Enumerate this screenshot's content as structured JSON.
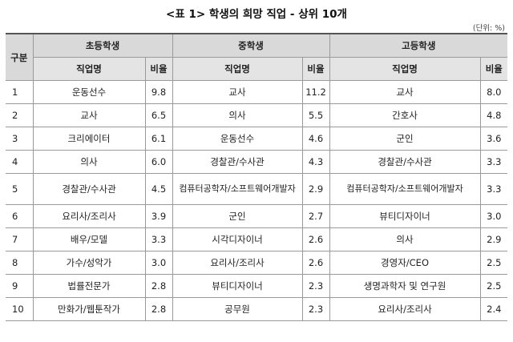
{
  "title": "<표 1> 학생의 희망 직업 - 상위 10개",
  "unit": "(단위: %)",
  "header": {
    "gubun": "구분",
    "groups": [
      "초등학생",
      "중학생",
      "고등학생"
    ],
    "job_label": "직업명",
    "ratio_label": "비율"
  },
  "rows": [
    {
      "rank": "1",
      "e_job": "운동선수",
      "e_val": "9.8",
      "m_job": "교사",
      "m_val": "11.2",
      "h_job": "교사",
      "h_val": "8.0"
    },
    {
      "rank": "2",
      "e_job": "교사",
      "e_val": "6.5",
      "m_job": "의사",
      "m_val": "5.5",
      "h_job": "간호사",
      "h_val": "4.8"
    },
    {
      "rank": "3",
      "e_job": "크리에이터",
      "e_val": "6.1",
      "m_job": "운동선수",
      "m_val": "4.6",
      "h_job": "군인",
      "h_val": "3.6"
    },
    {
      "rank": "4",
      "e_job": "의사",
      "e_val": "6.0",
      "m_job": "경찰관/수사관",
      "m_val": "4.3",
      "h_job": "경찰관/수사관",
      "h_val": "3.3"
    },
    {
      "rank": "5",
      "e_job": "경찰관/수사관",
      "e_val": "4.5",
      "m_job": "컴퓨터공학자/소프트웨어개발자",
      "m_val": "2.9",
      "h_job": "컴퓨터공학자/소프트웨어개발자",
      "h_val": "3.3"
    },
    {
      "rank": "6",
      "e_job": "요리사/조리사",
      "e_val": "3.9",
      "m_job": "군인",
      "m_val": "2.7",
      "h_job": "뷰티디자이너",
      "h_val": "3.0"
    },
    {
      "rank": "7",
      "e_job": "배우/모델",
      "e_val": "3.3",
      "m_job": "시각디자이너",
      "m_val": "2.6",
      "h_job": "의사",
      "h_val": "2.9"
    },
    {
      "rank": "8",
      "e_job": "가수/성악가",
      "e_val": "3.0",
      "m_job": "요리사/조리사",
      "m_val": "2.6",
      "h_job": "경영자/CEO",
      "h_val": "2.5"
    },
    {
      "rank": "9",
      "e_job": "법률전문가",
      "e_val": "2.8",
      "m_job": "뷰티디자이너",
      "m_val": "2.3",
      "h_job": "생명과학자 및 연구원",
      "h_val": "2.5"
    },
    {
      "rank": "10",
      "e_job": "만화가/웹툰작가",
      "e_val": "2.8",
      "m_job": "공무원",
      "m_val": "2.3",
      "h_job": "요리사/조리사",
      "h_val": "2.4"
    }
  ]
}
